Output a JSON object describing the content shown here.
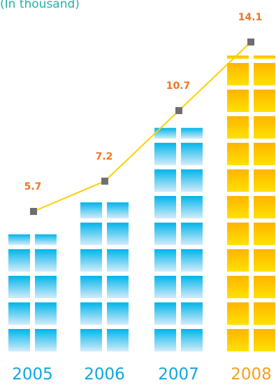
{
  "subtitle": "(In thousand)",
  "chart_data": {
    "type": "bar",
    "subtitle": "(In thousand)",
    "categories": [
      "2005",
      "2006",
      "2007",
      "2008"
    ],
    "values": [
      5.7,
      7.2,
      10.7,
      14.1
    ],
    "value_labels": [
      "5.7",
      "7.2",
      "10.7",
      "14.1"
    ],
    "overlay": "line",
    "grid": false,
    "legend": "none",
    "colors": {
      "bar_blue_top": "#00b5ea",
      "bar_blue_bottom": "#d4ecfa",
      "bar_gold_top": "#ffb400",
      "bar_gold_bottom": "#ffe100",
      "line": "#fdd000",
      "marker": "#6e6e6e",
      "value_label": "#f37421",
      "year_label_blue": "#11a6df",
      "year_label_gold": "#f6a01a"
    }
  }
}
